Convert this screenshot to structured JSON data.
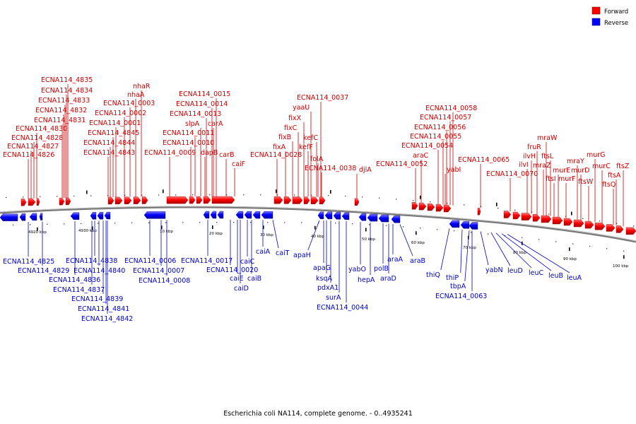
{
  "caption": "Escherichia coli NA114, complete genome. - 0..4935241",
  "legend": [
    {
      "label": "Forward",
      "color": "#ff0000"
    },
    {
      "label": "Reverse",
      "color": "#0000ff"
    }
  ],
  "colors": {
    "forward": "#ff0000",
    "reverse": "#0000ff",
    "forward_text": "#cc0000",
    "reverse_text": "#0000cc",
    "backbone": "#666666"
  },
  "scale_labels": [
    "4920 kbp",
    "4930 kbp",
    "10 kbp",
    "20 kbp",
    "30 kbp",
    "40 kbp",
    "50 kbp",
    "60 kbp",
    "70 kbp",
    "80 kbp",
    "90 kbp",
    "100 kbp"
  ],
  "forward_genes": [
    "ECNA114_4835",
    "ECNA114_4834",
    "ECNA114_4833",
    "ECNA114_4832",
    "ECNA114_4831",
    "ECNA114_4830",
    "ECNA114_4828",
    "ECNA114_4827",
    "ECNA114_4826",
    "nhaR",
    "nhaA",
    "ECNA114_0003",
    "ECNA114_0002",
    "ECNA114_0001",
    "ECNA114_4845",
    "ECNA114_4844",
    "ECNA114_4843",
    "ECNA114_0015",
    "ECNA114_0014",
    "ECNA114_0013",
    "slpA",
    "carA",
    "ECNA114_0011",
    "ECNA114_0010",
    "dapB",
    "ECNA114_0009",
    "carB",
    "caiF",
    "ECNA114_0037",
    "yaaU",
    "fixX",
    "fixC",
    "fixB",
    "fixA",
    "ECNA114_0028",
    "kefC",
    "kefF",
    "folA",
    "ECNA114_0038",
    "djlA",
    "ECNA114_0058",
    "ECNA114_0057",
    "ECNA114_0056",
    "ECNA114_0055",
    "ECNA114_0054",
    "araC",
    "ECNA114_0052",
    "yabI",
    "ECNA114_0065",
    "ECNA114_0070",
    "mraW",
    "fruR",
    "ilvH",
    "ftsL",
    "ilvI",
    "mraZ",
    "murE",
    "ftsI",
    "murF",
    "mraY",
    "murD",
    "murG",
    "ftsW",
    "murC",
    "ftsZ",
    "ftsA",
    "ftsQ"
  ],
  "reverse_genes": [
    "ECNA114_4825",
    "ECNA114_4829",
    "ECNA114_4836",
    "ECNA114_4837",
    "ECNA114_4838",
    "ECNA114_4840",
    "ECNA114_4839",
    "ECNA114_4841",
    "ECNA114_4842",
    "ECNA114_0006",
    "ECNA114_0007",
    "ECNA114_0008",
    "ECNA114_0017",
    "ECNA114_0020",
    "caiE",
    "caiD",
    "caiC",
    "caiB",
    "caiA",
    "caiT",
    "apaH",
    "apaG",
    "ksqA",
    "pdxA1",
    "surA",
    "ECNA114_0044",
    "yabO",
    "hepA",
    "polB",
    "araA",
    "araD",
    "araB",
    "thiQ",
    "thiP",
    "tbpA",
    "ECNA114_0063",
    "yabN",
    "leuD",
    "leuC",
    "leuB",
    "leuA"
  ]
}
